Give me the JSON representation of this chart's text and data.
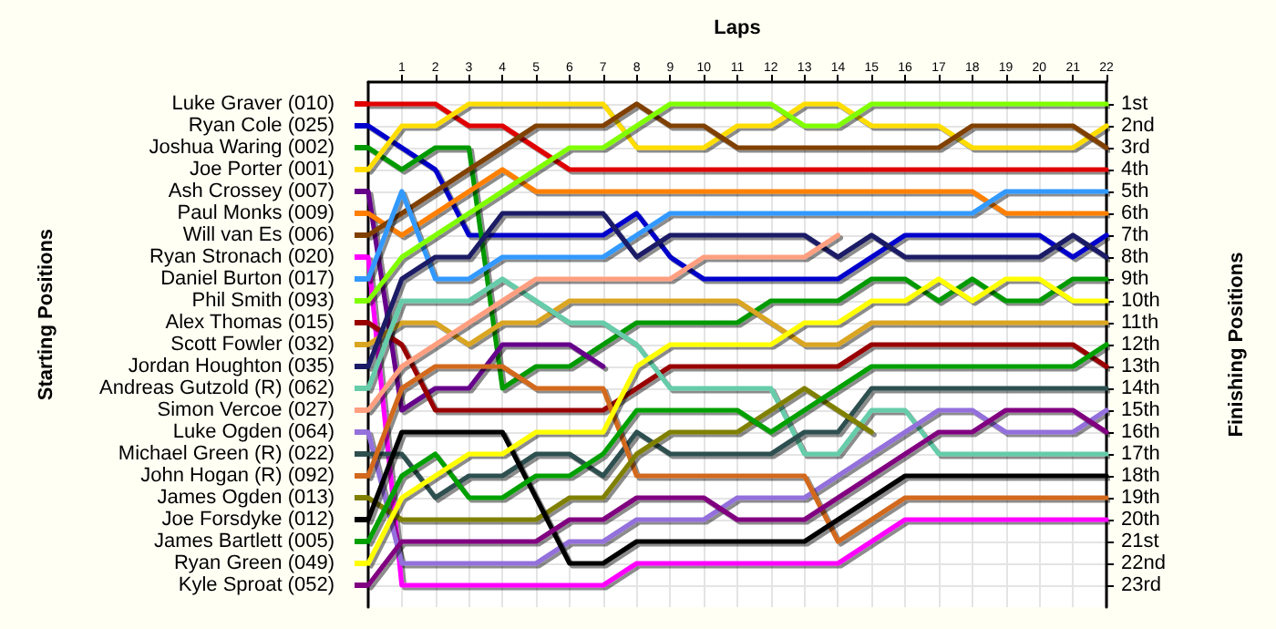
{
  "chart_data": {
    "type": "line",
    "xlabel": "Laps",
    "ylabel": "Finishing Positions",
    "annotations": [
      "Starting Positions"
    ],
    "x": [
      0,
      1,
      2,
      3,
      4,
      5,
      6,
      7,
      8,
      9,
      10,
      11,
      12,
      13,
      14,
      15,
      16,
      17,
      18,
      19,
      20,
      21,
      22
    ],
    "xlim": [
      0,
      22
    ],
    "xticks": [
      1,
      2,
      3,
      4,
      5,
      6,
      7,
      8,
      9,
      10,
      11,
      12,
      13,
      14,
      15,
      16,
      17,
      18,
      19,
      20,
      21,
      22
    ],
    "ylim": [
      24,
      0
    ],
    "yticks": [
      {
        "value": 1,
        "label": "1st"
      },
      {
        "value": 2,
        "label": "2nd"
      },
      {
        "value": 3,
        "label": "3rd"
      },
      {
        "value": 4,
        "label": "4th"
      },
      {
        "value": 5,
        "label": "5th"
      },
      {
        "value": 6,
        "label": "6th"
      },
      {
        "value": 7,
        "label": "7th"
      },
      {
        "value": 8,
        "label": "8th"
      },
      {
        "value": 9,
        "label": "9th"
      },
      {
        "value": 10,
        "label": "10th"
      },
      {
        "value": 11,
        "label": "11th"
      },
      {
        "value": 12,
        "label": "12th"
      },
      {
        "value": 13,
        "label": "13th"
      },
      {
        "value": 14,
        "label": "14th"
      },
      {
        "value": 15,
        "label": "15th"
      },
      {
        "value": 16,
        "label": "16th"
      },
      {
        "value": 17,
        "label": "17th"
      },
      {
        "value": 18,
        "label": "18th"
      },
      {
        "value": 19,
        "label": "19th"
      },
      {
        "value": 20,
        "label": "20th"
      },
      {
        "value": 21,
        "label": "21st"
      },
      {
        "value": 22,
        "label": "22nd"
      },
      {
        "value": 23,
        "label": "23rd"
      }
    ],
    "grid": true,
    "legend": "left",
    "marker": "none",
    "line_style": "solid",
    "series": [
      {
        "name": "Luke Graver (010)",
        "color": "#e00000",
        "values": [
          1,
          1,
          1,
          2,
          2,
          3,
          4,
          4,
          4,
          4,
          4,
          4,
          4,
          4,
          4,
          4,
          4,
          4,
          4,
          4,
          4,
          4,
          4
        ]
      },
      {
        "name": "Ryan Cole (025)",
        "color": "#0000cc",
        "values": [
          2,
          3,
          4,
          7,
          7,
          7,
          7,
          7,
          6,
          8,
          9,
          9,
          9,
          9,
          9,
          8,
          7,
          7,
          7,
          7,
          7,
          8,
          7
        ]
      },
      {
        "name": "Joshua Waring (002)",
        "color": "#009900",
        "values": [
          3,
          4,
          3,
          3,
          14,
          13,
          13,
          12,
          11,
          11,
          11,
          11,
          10,
          10,
          10,
          9,
          9,
          10,
          9,
          10,
          10,
          9,
          9
        ]
      },
      {
        "name": "Joe Porter (001)",
        "color": "#ffdd00",
        "values": [
          4,
          2,
          2,
          1,
          1,
          1,
          1,
          1,
          3,
          3,
          3,
          2,
          2,
          1,
          1,
          2,
          2,
          2,
          3,
          3,
          3,
          3,
          2
        ]
      },
      {
        "name": "Ash Crossey (007)",
        "color": "#66008a",
        "values": [
          5,
          15,
          14,
          14,
          12,
          12,
          12,
          13,
          null,
          null,
          null,
          null,
          null,
          null,
          null,
          null,
          null,
          null,
          null,
          null,
          null,
          null,
          null
        ]
      },
      {
        "name": "Paul Monks (009)",
        "color": "#ff8000",
        "values": [
          6,
          7,
          6,
          5,
          4,
          5,
          5,
          5,
          5,
          5,
          5,
          5,
          5,
          5,
          5,
          5,
          5,
          5,
          5,
          6,
          6,
          6,
          6
        ]
      },
      {
        "name": "Will van Es (006)",
        "color": "#804000",
        "values": [
          7,
          6,
          5,
          4,
          3,
          2,
          2,
          2,
          1,
          2,
          2,
          3,
          3,
          3,
          3,
          3,
          3,
          3,
          2,
          2,
          2,
          2,
          3
        ]
      },
      {
        "name": "Ryan Stronach (020)",
        "color": "#ff00ff",
        "values": [
          8,
          23,
          23,
          23,
          23,
          23,
          23,
          23,
          22,
          22,
          22,
          22,
          22,
          22,
          22,
          21,
          20,
          20,
          20,
          20,
          20,
          20,
          20
        ]
      },
      {
        "name": "Daniel Burton (017)",
        "color": "#3399ff",
        "values": [
          9,
          5,
          9,
          9,
          8,
          8,
          8,
          8,
          7,
          6,
          6,
          6,
          6,
          6,
          6,
          6,
          6,
          6,
          6,
          5,
          5,
          5,
          5
        ]
      },
      {
        "name": "Phil Smith (093)",
        "color": "#80ff00",
        "values": [
          10,
          8,
          7,
          6,
          5,
          4,
          3,
          3,
          2,
          1,
          1,
          1,
          1,
          2,
          2,
          1,
          1,
          1,
          1,
          1,
          1,
          1,
          1
        ]
      },
      {
        "name": "Alex Thomas (015)",
        "color": "#990000",
        "values": [
          11,
          12,
          15,
          15,
          15,
          15,
          15,
          15,
          14,
          13,
          13,
          13,
          13,
          13,
          13,
          12,
          12,
          12,
          12,
          12,
          12,
          12,
          13
        ]
      },
      {
        "name": "Scott Fowler (032)",
        "color": "#daa520",
        "values": [
          12,
          11,
          11,
          12,
          11,
          11,
          10,
          10,
          10,
          10,
          10,
          10,
          11,
          12,
          12,
          11,
          11,
          11,
          11,
          11,
          11,
          11,
          11
        ]
      },
      {
        "name": "Jordan Houghton (035)",
        "color": "#1a1a66",
        "values": [
          13,
          9,
          8,
          8,
          6,
          6,
          6,
          6,
          8,
          7,
          7,
          7,
          7,
          7,
          8,
          7,
          8,
          8,
          8,
          8,
          8,
          7,
          8
        ]
      },
      {
        "name": "Andreas Gutzold (R) (062)",
        "color": "#66ccaa",
        "values": [
          14,
          10,
          10,
          10,
          9,
          10,
          11,
          11,
          12,
          14,
          14,
          14,
          14,
          17,
          17,
          15,
          15,
          17,
          17,
          17,
          17,
          17,
          17
        ]
      },
      {
        "name": "Simon Vercoe (027)",
        "color": "#ff9f80",
        "values": [
          15,
          13,
          12,
          11,
          10,
          9,
          9,
          9,
          9,
          9,
          8,
          8,
          8,
          8,
          7,
          null,
          null,
          null,
          null,
          null,
          null,
          null,
          null
        ]
      },
      {
        "name": "Luke Ogden (064)",
        "color": "#9370db",
        "values": [
          16,
          22,
          22,
          22,
          22,
          22,
          21,
          21,
          20,
          20,
          20,
          19,
          19,
          19,
          18,
          17,
          16,
          15,
          15,
          16,
          16,
          16,
          15
        ]
      },
      {
        "name": "Michael Green (R) (022)",
        "color": "#2f4f4f",
        "values": [
          17,
          17,
          19,
          18,
          18,
          17,
          17,
          18,
          16,
          17,
          17,
          17,
          17,
          16,
          16,
          14,
          14,
          14,
          14,
          14,
          14,
          14,
          14
        ]
      },
      {
        "name": "John Hogan (R) (092)",
        "color": "#d2691e",
        "values": [
          18,
          14,
          13,
          13,
          13,
          14,
          14,
          14,
          18,
          18,
          18,
          18,
          18,
          18,
          21,
          20,
          19,
          19,
          19,
          19,
          19,
          19,
          19
        ]
      },
      {
        "name": "James Ogden (013)",
        "color": "#808000",
        "values": [
          19,
          20,
          20,
          20,
          20,
          20,
          19,
          19,
          17,
          16,
          16,
          16,
          15,
          14,
          15,
          16,
          null,
          null,
          null,
          null,
          null,
          null,
          null
        ]
      },
      {
        "name": "Joe Forsdyke (012)",
        "color": "#000000",
        "values": [
          20,
          16,
          16,
          16,
          16,
          19,
          22,
          22,
          21,
          21,
          21,
          21,
          21,
          21,
          20,
          19,
          18,
          18,
          18,
          18,
          18,
          18,
          18
        ]
      },
      {
        "name": "James Bartlett (005)",
        "color": "#00a000",
        "values": [
          21,
          18,
          17,
          19,
          19,
          18,
          18,
          17,
          15,
          15,
          15,
          15,
          16,
          15,
          14,
          13,
          13,
          13,
          13,
          13,
          13,
          13,
          12
        ]
      },
      {
        "name": "Ryan Green (049)",
        "color": "#ffff00",
        "values": [
          22,
          19,
          18,
          17,
          17,
          16,
          16,
          16,
          13,
          12,
          12,
          12,
          12,
          11,
          11,
          10,
          10,
          9,
          10,
          9,
          9,
          10,
          10
        ]
      },
      {
        "name": "Kyle Sproat (052)",
        "color": "#800080",
        "values": [
          23,
          21,
          21,
          21,
          21,
          21,
          20,
          20,
          19,
          19,
          19,
          20,
          20,
          20,
          19,
          18,
          17,
          16,
          16,
          15,
          15,
          15,
          16
        ]
      }
    ]
  }
}
